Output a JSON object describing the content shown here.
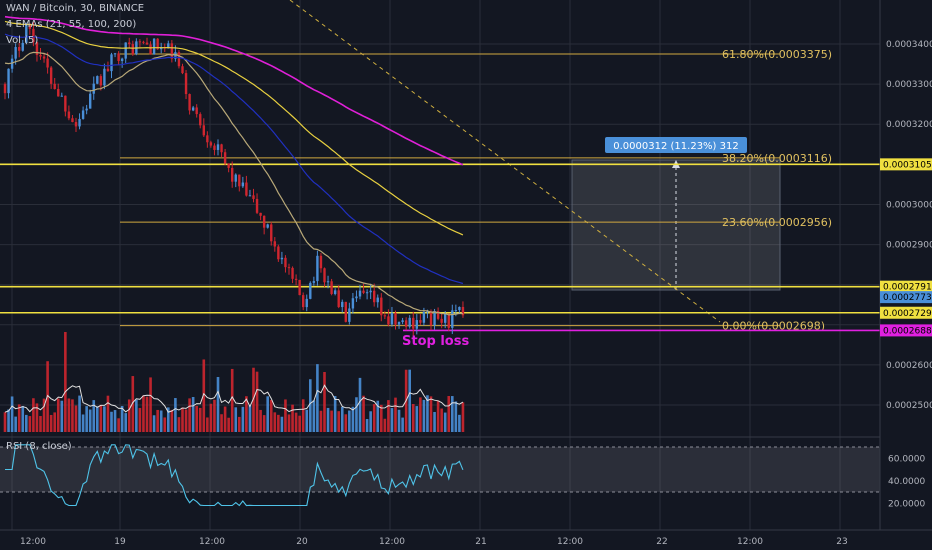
{
  "header": {
    "symbol_line": "WAN / Bitcoin, 30, BINANCE",
    "ema_line": "4 EMAs (21, 55, 100, 200)",
    "vol_line": "Vol (5)",
    "rsi_line": "RSI (8, close)"
  },
  "colors": {
    "background": "#131722",
    "grid": "#2a2e39",
    "candle_up": "#4a8fd8",
    "candle_down": "#d0262f",
    "ema21": "#b8a878",
    "ema55": "#2030c0",
    "ema100": "#e8d040",
    "ema200": "#e020d8",
    "fib": "#d0a840",
    "level_yellow": "#f0e040",
    "stop": "#e020e0",
    "rsi": "#4fc3e8",
    "measure": "#4a90d9"
  },
  "annotations": {
    "stop_loss": "Stop loss",
    "measure_label": "0.0000312 (11.23%) 312"
  },
  "chart_data": {
    "type": "candlestick",
    "price_axis": {
      "ylim": [
        0.000242,
        0.000347
      ],
      "ticks": [
        "0.0003400",
        "0.0003300",
        "0.0003200",
        "0.0003000",
        "0.0002900",
        "0.0002600",
        "0.0002500"
      ]
    },
    "time_axis": {
      "ticks": [
        "12:00",
        "19",
        "12:00",
        "20",
        "12:00",
        "21",
        "12:00",
        "22",
        "12:00",
        "23"
      ]
    },
    "price_tags": [
      {
        "label": "0.0003105",
        "value": 0.00031
      },
      {
        "label": "0.0002791",
        "value": 0.0002795
      },
      {
        "label": "0.0002773",
        "value": 0.0002769
      },
      {
        "label": "0.0002729",
        "value": 0.000273
      },
      {
        "label": "0.0002688",
        "value": 0.0002686
      }
    ],
    "fib_levels": [
      {
        "label": "61.80%(0.0003375)",
        "value": 0.0003375
      },
      {
        "label": "38.20%(0.0003116)",
        "value": 0.0003116
      },
      {
        "label": "23.60%(0.0002956)",
        "value": 0.0002956
      },
      {
        "label": "0.00%(0.0002698)",
        "value": 0.0002698
      }
    ],
    "rsi_axis": {
      "range": [
        10,
        75
      ],
      "bands": [
        70,
        30
      ],
      "ticks": [
        "60.0000",
        "40.0000",
        "20.0000"
      ]
    }
  }
}
